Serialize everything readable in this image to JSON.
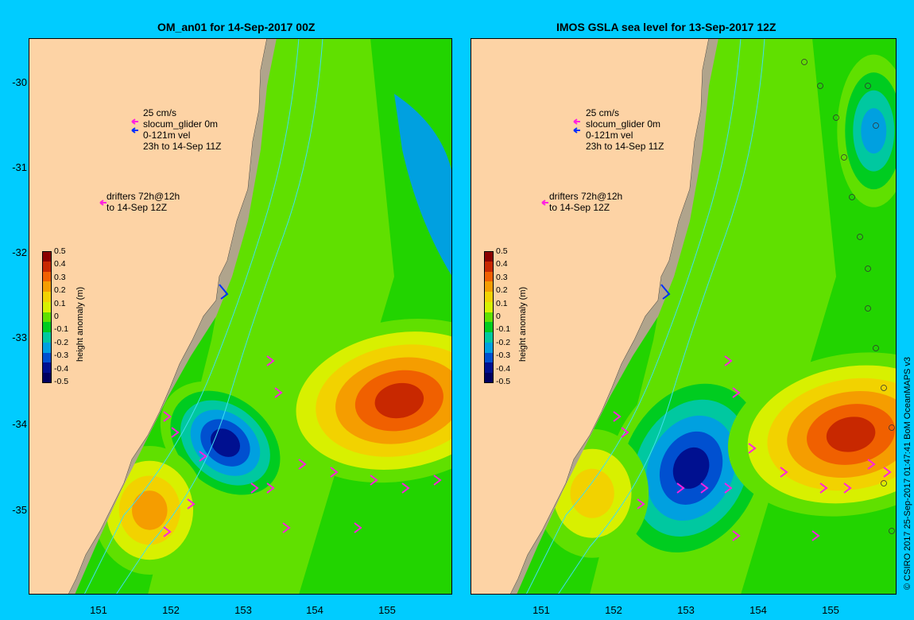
{
  "panels": [
    {
      "title": "OM_an01 for 14-Sep-2017 00Z",
      "velocity_scale": "25 cm/s",
      "glider_label": "slocum_glider 0m",
      "glider_range": "0-121m vel",
      "glider_period": "23h to 14-Sep 11Z",
      "drifter_label": "drifters 72h@12h",
      "drifter_period": "to 14-Sep 12Z"
    },
    {
      "title": "IMOS GSLA sea level  for 13-Sep-2017 12Z",
      "velocity_scale": "25 cm/s",
      "glider_label": "slocum_glider 0m",
      "glider_range": "0-121m vel",
      "glider_period": "23h to 14-Sep 11Z",
      "drifter_label": "drifters 72h@12h",
      "drifter_period": "to 14-Sep 12Z"
    }
  ],
  "axes": {
    "x_ticks": [
      "151",
      "152",
      "153",
      "154",
      "155"
    ],
    "y_ticks": [
      "-30",
      "-31",
      "-32",
      "-33",
      "-34",
      "-35"
    ]
  },
  "colorbar": {
    "title": "height anomaly (m)",
    "labels": [
      "0.5",
      "0.4",
      "0.3",
      "0.2",
      "0.1",
      "0",
      "-0.1",
      "-0.2",
      "-0.3",
      "-0.4",
      "-0.5"
    ],
    "colors": [
      "#8b0000",
      "#c82800",
      "#f06000",
      "#f59d00",
      "#f2d200",
      "#d8f000",
      "#60e000",
      "#00cc20",
      "#00c8a0",
      "#00a0e0",
      "#0050d0",
      "#001090",
      "#000060"
    ]
  },
  "credit": "© CSIRO 2017  25-Sep-2017 01:47:41 BoM OceanMAPS v3",
  "chart_data": {
    "type": "heatmap",
    "x_unit": "longitude (°E)",
    "y_unit": "latitude (°)",
    "xlim": [
      150.3,
      155.9
    ],
    "ylim": [
      -36.2,
      -29.6
    ],
    "features": [
      {
        "panel": 0,
        "kind": "cyclonic eddy",
        "lon": 152.9,
        "lat": -34.4,
        "anomaly": -0.5
      },
      {
        "panel": 0,
        "kind": "anticyclonic eddy",
        "lon": 155.2,
        "lat": -33.9,
        "anomaly": 0.5
      },
      {
        "panel": 0,
        "kind": "warm core",
        "lon": 151.9,
        "lat": -35.2,
        "anomaly": 0.3
      },
      {
        "panel": 1,
        "kind": "cyclonic eddy",
        "lon": 153.2,
        "lat": -34.7,
        "anomaly": -0.5
      },
      {
        "panel": 1,
        "kind": "anticyclonic eddy",
        "lon": 155.3,
        "lat": -34.3,
        "anomaly": 0.5
      },
      {
        "panel": 1,
        "kind": "warm core",
        "lon": 151.9,
        "lat": -35.0,
        "anomaly": 0.2
      },
      {
        "panel": 1,
        "kind": "cold core",
        "lon": 155.6,
        "lat": -30.7,
        "anomaly": -0.3
      }
    ]
  }
}
